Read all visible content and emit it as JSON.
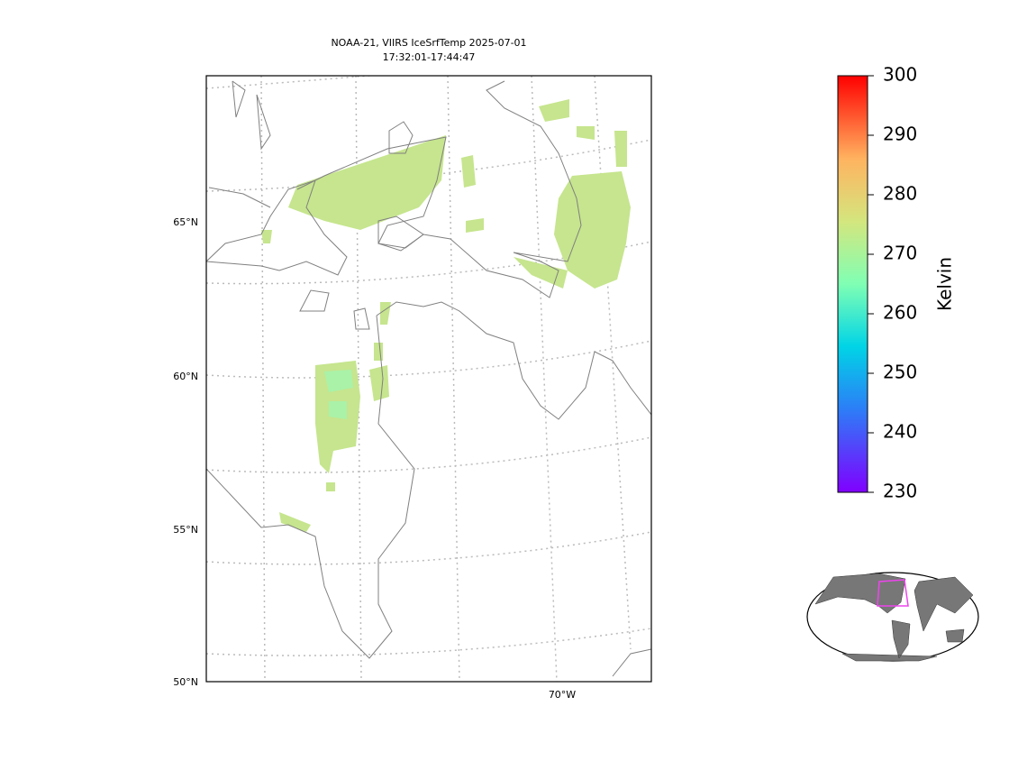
{
  "map": {
    "title": [
      "NOAA-21, VIIRS IceSrfTemp 2025-07-01",
      "17:32:01-17:44:47"
    ],
    "lat_labels": [
      "65°N",
      "60°N",
      "55°N",
      "50°N"
    ],
    "lon_labels": [
      "70°W"
    ]
  },
  "colorbar": {
    "label": "Kelvin",
    "lim": [
      230,
      300
    ],
    "ticks": [
      230,
      240,
      250,
      260,
      270,
      280,
      290,
      300
    ]
  }
}
